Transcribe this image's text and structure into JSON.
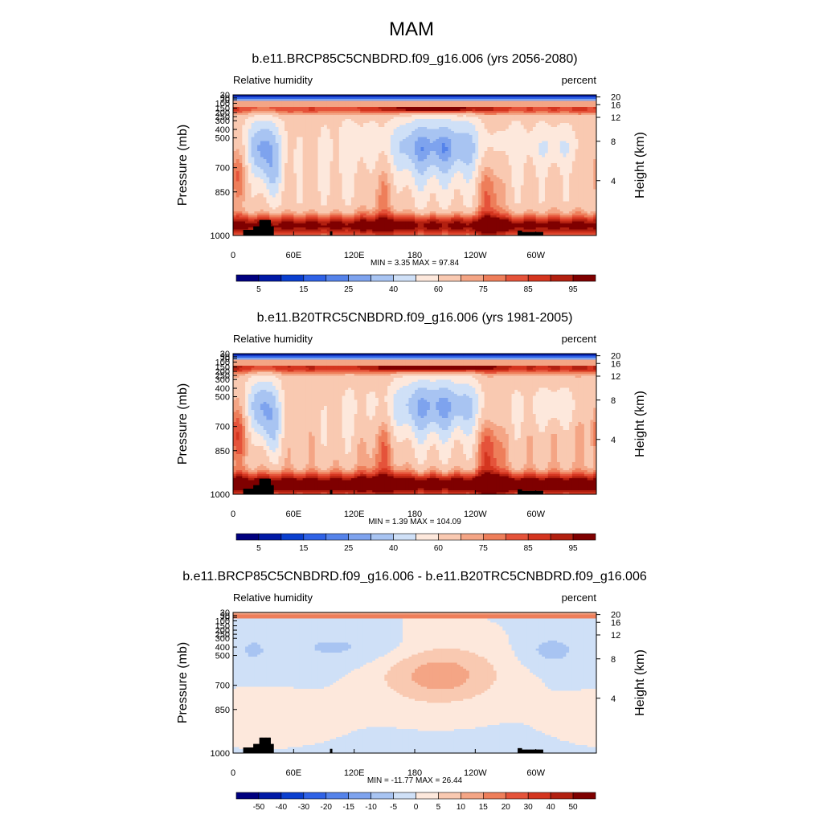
{
  "figure_title": "MAM",
  "chart_data": [
    {
      "type": "heatmap",
      "title": "b.e11.BRCP85C5CNBDRD.f09_g16.006 (yrs 2056-2080)",
      "left_label": "Relative humidity",
      "right_label": "percent",
      "ylabel": "Pressure (mb)",
      "y2label": "Height (km)",
      "x_ticks": [
        "0",
        "60E",
        "120E",
        "180",
        "120W",
        "60W"
      ],
      "x_tick_lon": [
        0,
        60,
        120,
        180,
        240,
        300
      ],
      "xlim": [
        0,
        360
      ],
      "y_ticks": [
        "30",
        "50",
        "70",
        "100",
        "150",
        "200",
        "250",
        "300",
        "400",
        "500",
        "700",
        "850",
        "1000"
      ],
      "y_tick_p": [
        30,
        50,
        70,
        100,
        150,
        200,
        250,
        300,
        400,
        500,
        700,
        850,
        1000
      ],
      "ylim": [
        1000,
        30
      ],
      "y2_ticks": [
        "20",
        "16",
        "12",
        "8",
        "4"
      ],
      "y2_tick_km": [
        20,
        16,
        12,
        8,
        4
      ],
      "stats": "MIN =   3.35  MAX =  97.84",
      "min": 3.35,
      "max": 97.84,
      "colorbar_labels": [
        "5",
        "15",
        "25",
        "40",
        "60",
        "75",
        "85",
        "95"
      ],
      "colorbar_levels": [
        0,
        5,
        10,
        15,
        20,
        25,
        30,
        40,
        50,
        60,
        70,
        75,
        80,
        85,
        90,
        95,
        100
      ],
      "scheme": "abs",
      "wet_factor": 1.0
    },
    {
      "type": "heatmap",
      "title": "b.e11.B20TRC5CNBDRD.f09_g16.006 (yrs 1981-2005)",
      "left_label": "Relative humidity",
      "right_label": "percent",
      "ylabel": "Pressure (mb)",
      "y2label": "Height (km)",
      "x_ticks": [
        "0",
        "60E",
        "120E",
        "180",
        "120W",
        "60W"
      ],
      "x_tick_lon": [
        0,
        60,
        120,
        180,
        240,
        300
      ],
      "xlim": [
        0,
        360
      ],
      "y_ticks": [
        "30",
        "50",
        "70",
        "100",
        "150",
        "200",
        "250",
        "300",
        "400",
        "500",
        "700",
        "850",
        "1000"
      ],
      "y_tick_p": [
        30,
        50,
        70,
        100,
        150,
        200,
        250,
        300,
        400,
        500,
        700,
        850,
        1000
      ],
      "ylim": [
        1000,
        30
      ],
      "y2_ticks": [
        "20",
        "16",
        "12",
        "8",
        "4"
      ],
      "y2_tick_km": [
        20,
        16,
        12,
        8,
        4
      ],
      "stats": "MIN =   1.39  MAX = 104.09",
      "min": 1.39,
      "max": 104.09,
      "colorbar_labels": [
        "5",
        "15",
        "25",
        "40",
        "60",
        "75",
        "85",
        "95"
      ],
      "colorbar_levels": [
        0,
        5,
        10,
        15,
        20,
        25,
        30,
        40,
        50,
        60,
        70,
        75,
        80,
        85,
        90,
        95,
        100
      ],
      "scheme": "abs",
      "wet_factor": 1.06
    },
    {
      "type": "heatmap",
      "title": "b.e11.BRCP85C5CNBDRD.f09_g16.006 - b.e11.B20TRC5CNBDRD.f09_g16.006",
      "left_label": "Relative humidity",
      "right_label": "percent",
      "ylabel": "Pressure (mb)",
      "y2label": "Height (km)",
      "x_ticks": [
        "0",
        "60E",
        "120E",
        "180",
        "120W",
        "60W"
      ],
      "x_tick_lon": [
        0,
        60,
        120,
        180,
        240,
        300
      ],
      "xlim": [
        0,
        360
      ],
      "y_ticks": [
        "30",
        "50",
        "70",
        "100",
        "150",
        "200",
        "250",
        "300",
        "400",
        "500",
        "700",
        "850",
        "1000"
      ],
      "y_tick_p": [
        30,
        50,
        70,
        100,
        150,
        200,
        250,
        300,
        400,
        500,
        700,
        850,
        1000
      ],
      "ylim": [
        1000,
        30
      ],
      "y2_ticks": [
        "20",
        "16",
        "12",
        "8",
        "4"
      ],
      "y2_tick_km": [
        20,
        16,
        12,
        8,
        4
      ],
      "stats": "MIN = -11.77  MAX =  26.44",
      "min": -11.77,
      "max": 26.44,
      "colorbar_labels": [
        "-50",
        "-40",
        "-30",
        "-20",
        "-15",
        "-10",
        "-5",
        "0",
        "5",
        "10",
        "15",
        "20",
        "30",
        "40",
        "50"
      ],
      "colorbar_levels": [
        -60,
        -50,
        -40,
        -30,
        -20,
        -15,
        -10,
        -5,
        0,
        5,
        10,
        15,
        20,
        30,
        40,
        50,
        60
      ],
      "scheme": "diff",
      "wet_factor": 1.0
    }
  ],
  "colors": {
    "palette16": [
      "#00007f",
      "#0019a6",
      "#0a3fcf",
      "#2f62e6",
      "#5583ea",
      "#7ea3ee",
      "#a8c4f2",
      "#cfe0f7",
      "#fde8dc",
      "#f9c9b1",
      "#f4a585",
      "#ee7e5a",
      "#e5533a",
      "#d4351f",
      "#b22010",
      "#7f0000"
    ],
    "topography": "#000000"
  }
}
